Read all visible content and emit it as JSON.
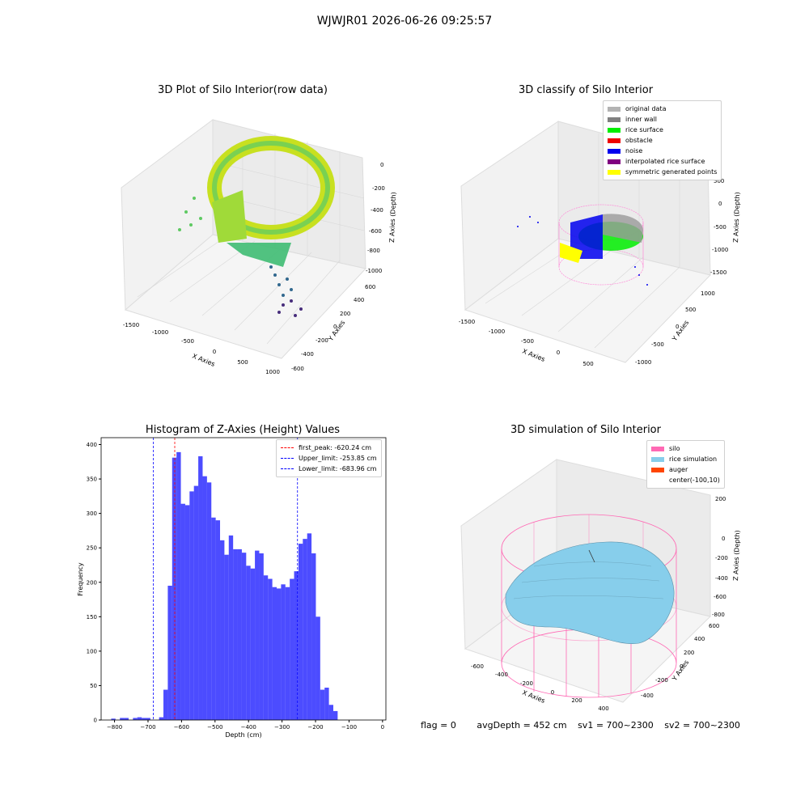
{
  "suptitle": "WJWJR01 2026-06-26 09:25:57",
  "panels": {
    "raw": {
      "title": "3D Plot of Silo Interior(row data)",
      "xlabel": "X Axies",
      "ylabel": "Y Axies",
      "zlabel": "Z Axies (Depth)",
      "xticks": [
        "-1500",
        "-1000",
        "-500",
        "0",
        "500",
        "1000"
      ],
      "yticks": [
        "-600",
        "-400",
        "-200",
        "0",
        "200",
        "400",
        "600"
      ],
      "zticks": [
        "0",
        "-200",
        "-400",
        "-600",
        "-800",
        "-1000"
      ]
    },
    "classify": {
      "title": "3D classify of Silo Interior",
      "xlabel": "X Axies",
      "ylabel": "Y Axies",
      "zlabel": "Z Axies (Depth)",
      "xticks": [
        "-1500",
        "-1000",
        "-500",
        "0",
        "500"
      ],
      "yticks": [
        "-1000",
        "-500",
        "0",
        "500",
        "1000"
      ],
      "zticks": [
        "500",
        "0",
        "-500",
        "-1000",
        "-1500"
      ],
      "legend": [
        {
          "label": "original data",
          "color": "#b3b3b3"
        },
        {
          "label": "inner wall",
          "color": "#808080"
        },
        {
          "label": "rice surface",
          "color": "#00ee00"
        },
        {
          "label": "obstacle",
          "color": "#ee0000"
        },
        {
          "label": "noise",
          "color": "#0000ee"
        },
        {
          "label": "interpolated rice surface",
          "color": "#800080"
        },
        {
          "label": "symmetric generated points",
          "color": "#ffff00"
        }
      ]
    },
    "simulation": {
      "title": "3D simulation of Silo Interior",
      "xlabel": "X Axies",
      "ylabel": "Y Axies",
      "zlabel": "Z Axies (Depth)",
      "xticks": [
        "-600",
        "-400",
        "-200",
        "0",
        "200",
        "400"
      ],
      "yticks": [
        "-400",
        "-200",
        "0",
        "200",
        "400",
        "600"
      ],
      "zticks": [
        "200",
        "0",
        "-200",
        "-400",
        "-600",
        "-800"
      ],
      "legend": [
        {
          "label": "silo",
          "color": "#ff69b4"
        },
        {
          "label": "rice simulation",
          "color": "#87ceeb"
        },
        {
          "label": "auger",
          "color": "#ff4500"
        },
        {
          "label": "center(-100,10)",
          "color": ""
        }
      ]
    }
  },
  "footer": {
    "flag": "flag = 0",
    "avg": "avgDepth = 452 cm",
    "sv1": "sv1 = 700~2300",
    "sv2": "sv2 = 700~2300"
  },
  "chart_data": {
    "type": "bar",
    "title": "Histogram of Z-Axies (Height) Values",
    "xlabel": "Depth (cm)",
    "ylabel": "Frequency",
    "xlim": [
      -840,
      10
    ],
    "ylim": [
      0,
      410
    ],
    "xticks": [
      -800,
      -700,
      -600,
      -500,
      -400,
      -300,
      -200,
      -100,
      0
    ],
    "yticks": [
      0,
      50,
      100,
      150,
      200,
      250,
      300,
      350,
      400
    ],
    "bar_color": "#0000ff",
    "bins": [
      {
        "x0": -810,
        "x1": -797,
        "y": 2
      },
      {
        "x0": -784,
        "x1": -771,
        "y": 3
      },
      {
        "x0": -771,
        "x1": -758,
        "y": 3
      },
      {
        "x0": -745,
        "x1": -732,
        "y": 3
      },
      {
        "x0": -732,
        "x1": -719,
        "y": 4
      },
      {
        "x0": -719,
        "x1": -706,
        "y": 3
      },
      {
        "x0": -706,
        "x1": -693,
        "y": 3
      },
      {
        "x0": -667,
        "x1": -654,
        "y": 4
      },
      {
        "x0": -654,
        "x1": -641,
        "y": 44
      },
      {
        "x0": -641,
        "x1": -628,
        "y": 195
      },
      {
        "x0": -628,
        "x1": -615,
        "y": 381
      },
      {
        "x0": -615,
        "x1": -602,
        "y": 389
      },
      {
        "x0": -602,
        "x1": -589,
        "y": 314
      },
      {
        "x0": -589,
        "x1": -576,
        "y": 312
      },
      {
        "x0": -576,
        "x1": -563,
        "y": 332
      },
      {
        "x0": -563,
        "x1": -550,
        "y": 340
      },
      {
        "x0": -550,
        "x1": -537,
        "y": 383
      },
      {
        "x0": -537,
        "x1": -524,
        "y": 354
      },
      {
        "x0": -524,
        "x1": -511,
        "y": 345
      },
      {
        "x0": -511,
        "x1": -498,
        "y": 294
      },
      {
        "x0": -498,
        "x1": -485,
        "y": 290
      },
      {
        "x0": -485,
        "x1": -472,
        "y": 261
      },
      {
        "x0": -472,
        "x1": -459,
        "y": 240
      },
      {
        "x0": -459,
        "x1": -446,
        "y": 268
      },
      {
        "x0": -446,
        "x1": -433,
        "y": 248
      },
      {
        "x0": -433,
        "x1": -420,
        "y": 248
      },
      {
        "x0": -420,
        "x1": -407,
        "y": 243
      },
      {
        "x0": -407,
        "x1": -394,
        "y": 224
      },
      {
        "x0": -394,
        "x1": -381,
        "y": 220
      },
      {
        "x0": -381,
        "x1": -368,
        "y": 246
      },
      {
        "x0": -368,
        "x1": -355,
        "y": 242
      },
      {
        "x0": -355,
        "x1": -342,
        "y": 210
      },
      {
        "x0": -342,
        "x1": -329,
        "y": 205
      },
      {
        "x0": -329,
        "x1": -316,
        "y": 193
      },
      {
        "x0": -316,
        "x1": -303,
        "y": 191
      },
      {
        "x0": -303,
        "x1": -290,
        "y": 197
      },
      {
        "x0": -290,
        "x1": -277,
        "y": 193
      },
      {
        "x0": -277,
        "x1": -264,
        "y": 205
      },
      {
        "x0": -264,
        "x1": -251,
        "y": 216
      },
      {
        "x0": -251,
        "x1": -238,
        "y": 256
      },
      {
        "x0": -238,
        "x1": -225,
        "y": 263
      },
      {
        "x0": -225,
        "x1": -212,
        "y": 271
      },
      {
        "x0": -212,
        "x1": -199,
        "y": 242
      },
      {
        "x0": -199,
        "x1": -186,
        "y": 150
      },
      {
        "x0": -186,
        "x1": -173,
        "y": 44
      },
      {
        "x0": -173,
        "x1": -160,
        "y": 47
      },
      {
        "x0": -160,
        "x1": -147,
        "y": 22
      },
      {
        "x0": -147,
        "x1": -134,
        "y": 13
      }
    ],
    "vlines": [
      {
        "x": -620.24,
        "color": "#ff0000",
        "label": "first_peak: -620.24 cm"
      },
      {
        "x": -253.85,
        "color": "#0000ff",
        "label": "Upper_limit: -253.85 cm"
      },
      {
        "x": -683.96,
        "color": "#0000ff",
        "label": "Lower_limit: -683.96 cm"
      }
    ],
    "legend_position": "upper right"
  }
}
